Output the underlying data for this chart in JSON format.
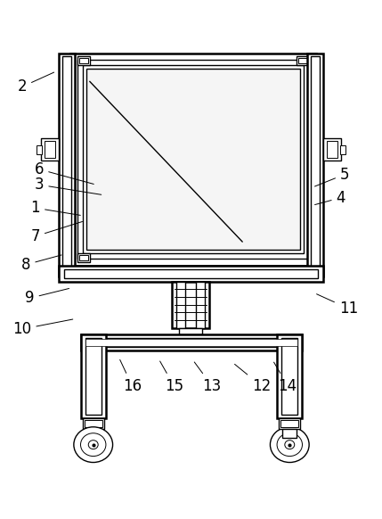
{
  "background_color": "#ffffff",
  "line_color": "#000000",
  "lw": 1.0,
  "tlw": 1.8,
  "label_fontsize": 12,
  "label_defs": [
    [
      1,
      0.215,
      0.415,
      0.09,
      0.4
    ],
    [
      2,
      0.145,
      0.135,
      0.055,
      0.165
    ],
    [
      3,
      0.27,
      0.375,
      0.1,
      0.355
    ],
    [
      4,
      0.82,
      0.395,
      0.895,
      0.38
    ],
    [
      5,
      0.82,
      0.36,
      0.905,
      0.335
    ],
    [
      6,
      0.25,
      0.355,
      0.1,
      0.325
    ],
    [
      7,
      0.22,
      0.425,
      0.09,
      0.455
    ],
    [
      8,
      0.165,
      0.49,
      0.065,
      0.51
    ],
    [
      9,
      0.185,
      0.555,
      0.075,
      0.575
    ],
    [
      10,
      0.195,
      0.615,
      0.055,
      0.635
    ],
    [
      11,
      0.825,
      0.565,
      0.915,
      0.595
    ],
    [
      12,
      0.61,
      0.7,
      0.685,
      0.745
    ],
    [
      13,
      0.505,
      0.695,
      0.555,
      0.745
    ],
    [
      14,
      0.715,
      0.695,
      0.755,
      0.745
    ],
    [
      15,
      0.415,
      0.693,
      0.455,
      0.745
    ],
    [
      16,
      0.31,
      0.69,
      0.345,
      0.745
    ]
  ]
}
